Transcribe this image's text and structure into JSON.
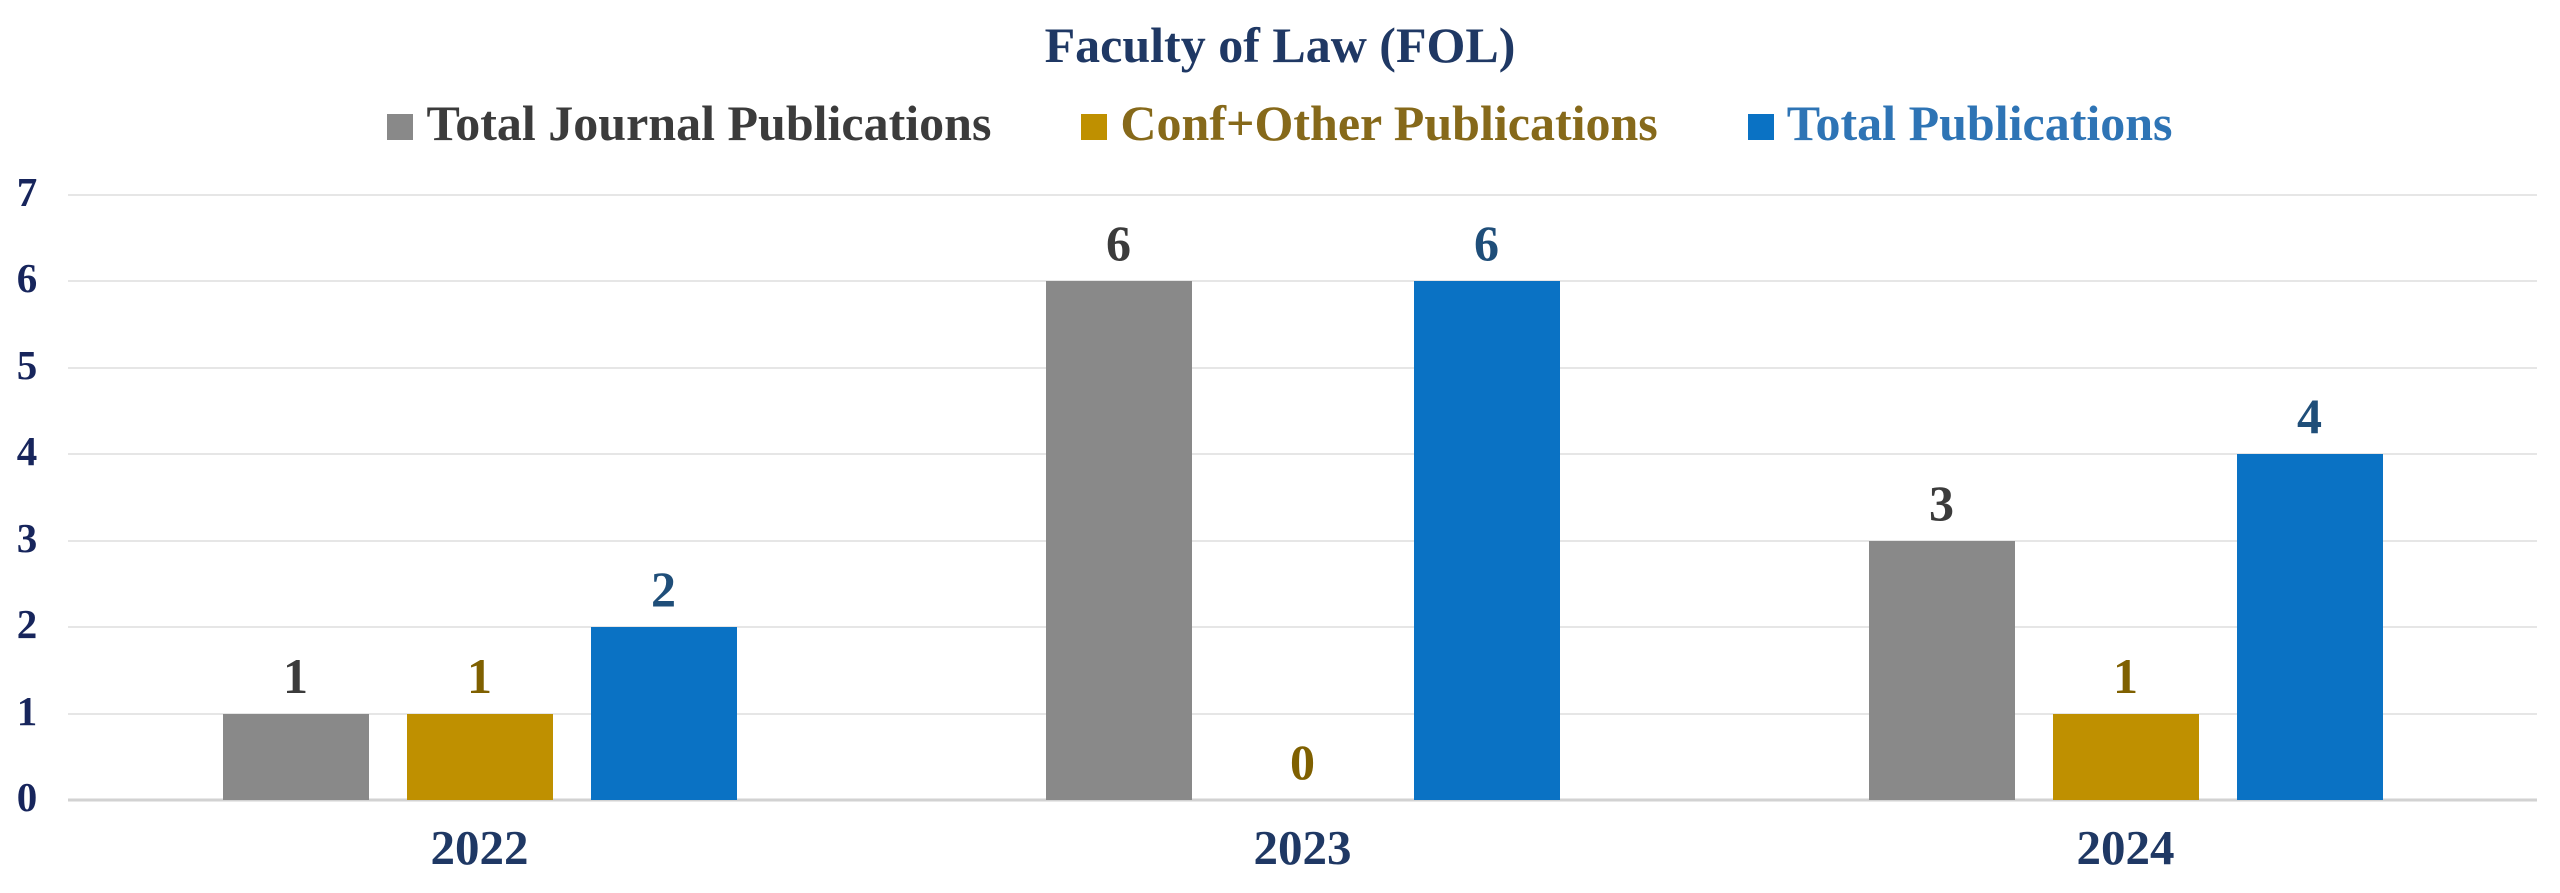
{
  "title": "Faculty of Law (FOL)",
  "colors": {
    "background": "#FFFFFF",
    "title_text": "#1F3864",
    "y_axis_text": "#17255C",
    "x_axis_text": "#1F3864",
    "gridline": "#E6E6E6",
    "baseline": "#D2D2D2"
  },
  "chart_data": {
    "type": "bar",
    "title": "Faculty of Law (FOL)",
    "categories": [
      "2022",
      "2023",
      "2024"
    ],
    "series": [
      {
        "name": "Total Journal Publications",
        "color": "#898989",
        "label_color": "#3B3B3B",
        "legend_text_color": "#3B3B3B",
        "values": [
          1,
          6,
          3
        ]
      },
      {
        "name": "Conf+Other Publications",
        "color": "#BF9000",
        "label_color": "#7F6000",
        "legend_text_color": "#86691A",
        "values": [
          1,
          0,
          1
        ]
      },
      {
        "name": "Total Publications",
        "color": "#0A72C4",
        "label_color": "#1F4E79",
        "legend_text_color": "#2E74B5",
        "values": [
          2,
          6,
          4
        ]
      }
    ],
    "xlabel": "",
    "ylabel": "",
    "ylim": [
      0,
      7
    ],
    "yticks": [
      0,
      1,
      2,
      3,
      4,
      5,
      6,
      7
    ],
    "grid": true,
    "legend_position": "top",
    "data_labels": true
  }
}
